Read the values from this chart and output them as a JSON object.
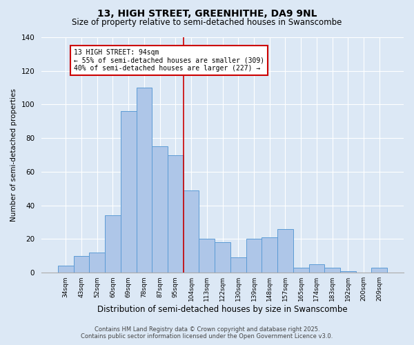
{
  "title": "13, HIGH STREET, GREENHITHE, DA9 9NL",
  "subtitle": "Size of property relative to semi-detached houses in Swanscombe",
  "xlabel": "Distribution of semi-detached houses by size in Swanscombe",
  "ylabel": "Number of semi-detached properties",
  "categories": [
    "34sqm",
    "43sqm",
    "52sqm",
    "60sqm",
    "69sqm",
    "78sqm",
    "87sqm",
    "95sqm",
    "104sqm",
    "113sqm",
    "122sqm",
    "130sqm",
    "139sqm",
    "148sqm",
    "157sqm",
    "165sqm",
    "174sqm",
    "183sqm",
    "192sqm",
    "200sqm",
    "209sqm"
  ],
  "values": [
    4,
    10,
    12,
    34,
    96,
    110,
    75,
    70,
    49,
    20,
    18,
    9,
    20,
    21,
    26,
    3,
    5,
    3,
    1,
    0,
    3
  ],
  "bar_color": "#aec6e8",
  "bar_edge_color": "#5b9bd5",
  "vline_color": "#cc0000",
  "vline_x": 7.5,
  "annotation_title": "13 HIGH STREET: 94sqm",
  "annotation_line2": "← 55% of semi-detached houses are smaller (309)",
  "annotation_line3": "40% of semi-detached houses are larger (227) →",
  "annotation_box_color": "#cc0000",
  "ylim": [
    0,
    140
  ],
  "yticks": [
    0,
    20,
    40,
    60,
    80,
    100,
    120,
    140
  ],
  "bg_color": "#dce8f5",
  "grid_color": "#ffffff",
  "footer1": "Contains HM Land Registry data © Crown copyright and database right 2025.",
  "footer2": "Contains public sector information licensed under the Open Government Licence v3.0."
}
